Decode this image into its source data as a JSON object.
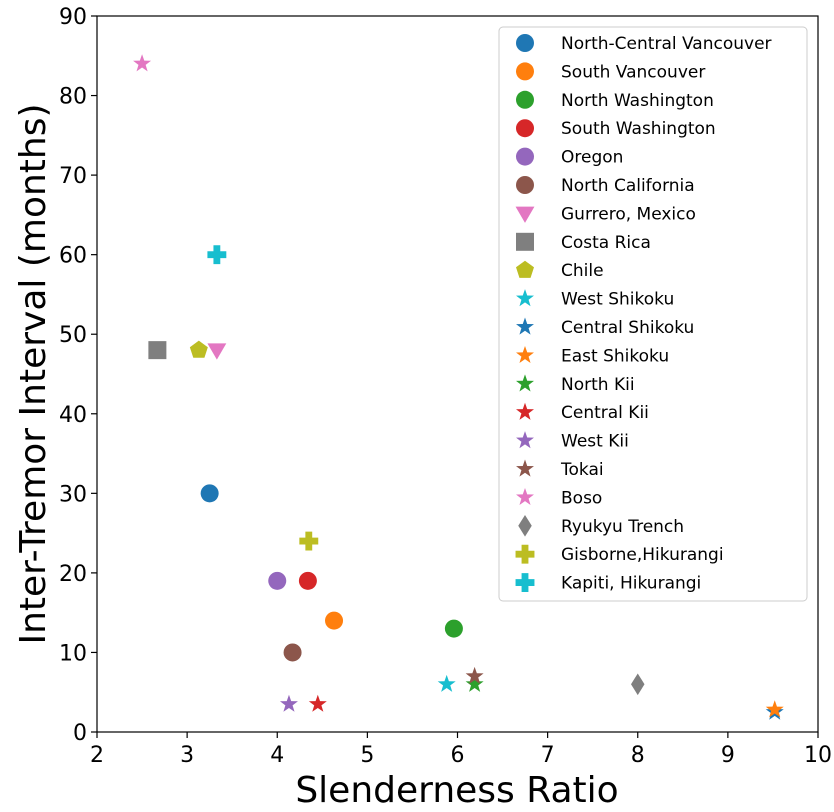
{
  "chart_data": {
    "type": "scatter",
    "title": "",
    "xlabel": "Slenderness Ratio",
    "ylabel": "Inter-Tremor Interval (months)",
    "xlim": [
      2,
      10
    ],
    "ylim": [
      0,
      90
    ],
    "x_ticks": [
      "2",
      "3",
      "4",
      "5",
      "6",
      "7",
      "8",
      "9",
      "10"
    ],
    "y_ticks": [
      "0",
      "10",
      "20",
      "30",
      "40",
      "50",
      "60",
      "70",
      "80",
      "90"
    ],
    "grid": false,
    "legend_position": "top-right",
    "series": [
      {
        "name": "North-Central Vancouver",
        "marker": "circle",
        "color": "#1f77b4",
        "points": [
          [
            3.25,
            30
          ]
        ]
      },
      {
        "name": "South Vancouver",
        "marker": "circle",
        "color": "#ff7f0e",
        "points": [
          [
            4.63,
            14
          ]
        ]
      },
      {
        "name": "North Washington",
        "marker": "circle",
        "color": "#2ca02c",
        "points": [
          [
            5.96,
            13
          ]
        ]
      },
      {
        "name": "South Washington",
        "marker": "circle",
        "color": "#d62728",
        "points": [
          [
            4.34,
            19
          ]
        ]
      },
      {
        "name": "Oregon",
        "marker": "circle",
        "color": "#9467bd",
        "points": [
          [
            4.0,
            19
          ]
        ]
      },
      {
        "name": "North California",
        "marker": "circle",
        "color": "#8c564b",
        "points": [
          [
            4.17,
            10
          ]
        ]
      },
      {
        "name": "Gurrero, Mexico",
        "marker": "triangle-down",
        "color": "#e377c2",
        "points": [
          [
            3.33,
            48
          ]
        ]
      },
      {
        "name": "Costa Rica",
        "marker": "square",
        "color": "#7f7f7f",
        "points": [
          [
            2.67,
            48
          ]
        ]
      },
      {
        "name": "Chile",
        "marker": "pentagon",
        "color": "#bcbd22",
        "points": [
          [
            3.13,
            48
          ]
        ]
      },
      {
        "name": "West Shikoku",
        "marker": "star",
        "color": "#17becf",
        "points": [
          [
            5.88,
            6
          ]
        ]
      },
      {
        "name": "Central Shikoku",
        "marker": "star",
        "color": "#1f77b4",
        "points": [
          [
            9.52,
            2.5
          ]
        ]
      },
      {
        "name": "East Shikoku",
        "marker": "star",
        "color": "#ff7f0e",
        "points": [
          [
            9.52,
            2.8
          ]
        ]
      },
      {
        "name": "North Kii",
        "marker": "star",
        "color": "#2ca02c",
        "points": [
          [
            6.19,
            6
          ]
        ]
      },
      {
        "name": "Central Kii",
        "marker": "star",
        "color": "#d62728",
        "points": [
          [
            4.45,
            3.5
          ]
        ]
      },
      {
        "name": "West Kii",
        "marker": "star",
        "color": "#9467bd",
        "points": [
          [
            4.13,
            3.5
          ]
        ]
      },
      {
        "name": "Tokai",
        "marker": "star",
        "color": "#8c564b",
        "points": [
          [
            6.19,
            7
          ]
        ]
      },
      {
        "name": "Boso",
        "marker": "star",
        "color": "#e377c2",
        "points": [
          [
            2.5,
            84
          ]
        ]
      },
      {
        "name": "Ryukyu Trench",
        "marker": "diamond",
        "color": "#7f7f7f",
        "points": [
          [
            8.0,
            6
          ]
        ]
      },
      {
        "name": "Gisborne,Hikurangi",
        "marker": "plus",
        "color": "#bcbd22",
        "points": [
          [
            4.35,
            24
          ]
        ]
      },
      {
        "name": "Kapiti, Hikurangi",
        "marker": "plus",
        "color": "#17becf",
        "points": [
          [
            3.33,
            60
          ]
        ]
      }
    ]
  }
}
